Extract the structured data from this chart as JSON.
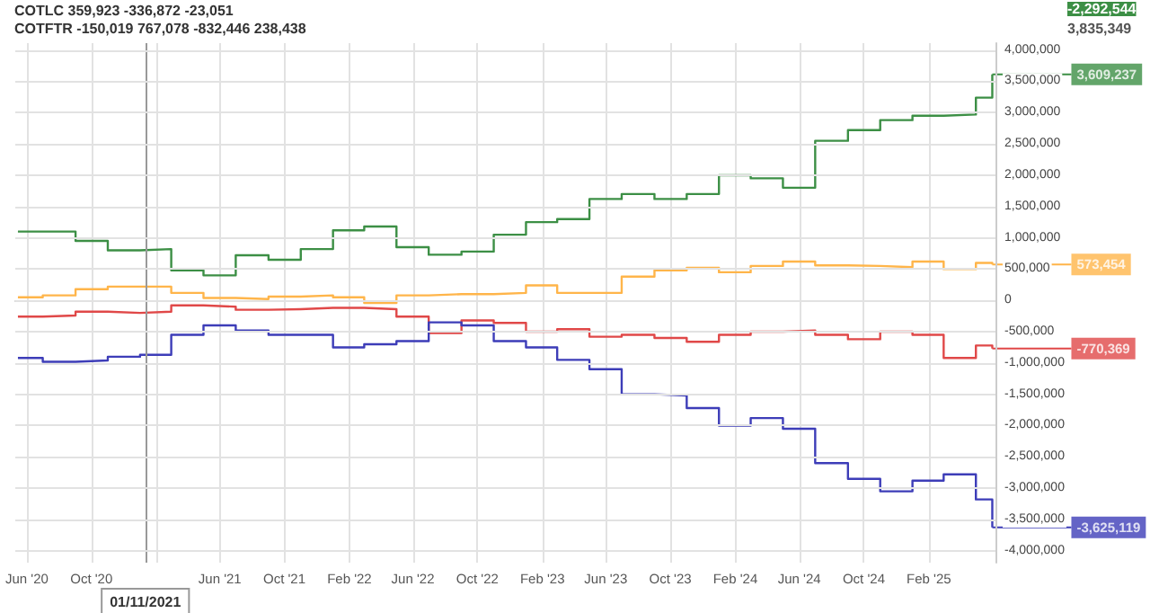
{
  "chart_data": {
    "type": "step",
    "annotations": [
      "COTLC 359,923 -336,872 -23,051",
      "COTFTR -150,019 767,078 -832,446 238,438",
      "-2,292,544",
      "3,835,349",
      {
        "text": "3,609,237",
        "x": "2025-06",
        "y": 3609237
      },
      {
        "text": "573,454",
        "x": "2025-06",
        "y": 573454
      },
      {
        "text": "-770,369",
        "x": "2025-06",
        "y": -770369
      },
      {
        "text": "-3,625,119",
        "x": "2025-06",
        "y": -3625119
      }
    ],
    "x": [
      "2020-05-15",
      "2020-07",
      "2020-09",
      "2020-11",
      "2021-01",
      "2021-03",
      "2021-05",
      "2021-07",
      "2021-09",
      "2021-11",
      "2022-01",
      "2022-03",
      "2022-05",
      "2022-07",
      "2022-09",
      "2022-11",
      "2023-01",
      "2023-03",
      "2023-05",
      "2023-07",
      "2023-09",
      "2023-11",
      "2024-01",
      "2024-03",
      "2024-05",
      "2024-07",
      "2024-09",
      "2024-11",
      "2025-01",
      "2025-03",
      "2025-05",
      "2025-06"
    ],
    "series": [
      {
        "color": "#e04848",
        "values": [
          -260000,
          -240000,
          -180000,
          -200000,
          -180000,
          -80000,
          -100000,
          -150000,
          -140000,
          -120000,
          -120000,
          -140000,
          -260000,
          -520000,
          -320000,
          -360000,
          -500000,
          -460000,
          -580000,
          -550000,
          -600000,
          -660000,
          -550000,
          -500000,
          -480000,
          -550000,
          -620000,
          -500000,
          -550000,
          -920000,
          -720000,
          -770369
        ]
      },
      {
        "color": "#3c8f45",
        "values": [
          1100000,
          1100000,
          950000,
          800000,
          820000,
          480000,
          400000,
          720000,
          650000,
          820000,
          1120000,
          1180000,
          850000,
          730000,
          780000,
          1050000,
          1250000,
          1300000,
          1620000,
          1700000,
          1620000,
          1700000,
          2000000,
          1950000,
          1800000,
          2550000,
          2720000,
          2880000,
          2950000,
          2970000,
          3240000,
          3609237
        ]
      },
      {
        "color": "#3d3db8",
        "values": [
          -920000,
          -980000,
          -960000,
          -900000,
          -870000,
          -550000,
          -400000,
          -480000,
          -550000,
          -550000,
          -750000,
          -700000,
          -650000,
          -350000,
          -400000,
          -650000,
          -750000,
          -950000,
          -1100000,
          -1500000,
          -1520000,
          -1720000,
          -2000000,
          -1880000,
          -2050000,
          -2600000,
          -2850000,
          -3050000,
          -2880000,
          -2780000,
          -3180000,
          -3625119
        ]
      },
      {
        "color": "#ffb54a",
        "values": [
          50000,
          80000,
          180000,
          220000,
          220000,
          120000,
          40000,
          20000,
          60000,
          80000,
          50000,
          -40000,
          80000,
          100000,
          100000,
          120000,
          240000,
          120000,
          120000,
          380000,
          480000,
          520000,
          450000,
          550000,
          620000,
          560000,
          550000,
          530000,
          620000,
          500000,
          600000,
          573454
        ]
      }
    ],
    "xlim": [
      "2020-05-10",
      "2025-06-07"
    ],
    "xticks": [
      {
        "value": "2020-06",
        "label": "Jun '20"
      },
      {
        "value": "2020-10",
        "label": "Oct '20"
      },
      {
        "value": "2021-02",
        "label": null
      },
      {
        "value": "2021-06",
        "label": "Jun '21"
      },
      {
        "value": "2021-10",
        "label": "Oct '21"
      },
      {
        "value": "2022-02",
        "label": "Feb '22"
      },
      {
        "value": "2022-06",
        "label": "Jun '22"
      },
      {
        "value": "2022-10",
        "label": "Oct '22"
      },
      {
        "value": "2023-02",
        "label": "Feb '23"
      },
      {
        "value": "2023-06",
        "label": "Jun '23"
      },
      {
        "value": "2023-10",
        "label": "Oct '23"
      },
      {
        "value": "2024-02",
        "label": "Feb '24"
      },
      {
        "value": "2024-06",
        "label": "Jun '24"
      },
      {
        "value": "2024-10",
        "label": "Oct '24"
      },
      {
        "value": "2025-02",
        "label": "Feb '25"
      }
    ],
    "ylim": [
      -4190000,
      4110000
    ],
    "yticks": [
      {
        "value": -4000000,
        "label": "-4,000,000"
      },
      {
        "value": -3500000,
        "label": "-3,500,000"
      },
      {
        "value": -3000000,
        "label": "-3,000,000"
      },
      {
        "value": -2500000,
        "label": "-2,500,000"
      },
      {
        "value": -2000000,
        "label": "-2,000,000"
      },
      {
        "value": -1500000,
        "label": "-1,500,000"
      },
      {
        "value": -1000000,
        "label": "-1,000,000"
      },
      {
        "value": -500000,
        "label": "-500,000"
      },
      0,
      {
        "value": 500000,
        "label": "500,000"
      },
      {
        "value": 1000000,
        "label": "1,000,000"
      },
      {
        "value": 1500000,
        "label": "1,500,000"
      },
      {
        "value": 2000000,
        "label": "2,000,000"
      },
      {
        "value": 2500000,
        "label": "2,500,000"
      },
      {
        "value": 3000000,
        "label": "3,000,000"
      },
      {
        "value": 3500000,
        "label": "3,500,000"
      },
      {
        "value": 4000000,
        "label": "4,000,000"
      }
    ],
    "ref_lines": [
      {
        "axis": "x",
        "value": "2021-01-11",
        "label": "01/11/2021",
        "color": "#999999"
      }
    ],
    "grid": true
  }
}
